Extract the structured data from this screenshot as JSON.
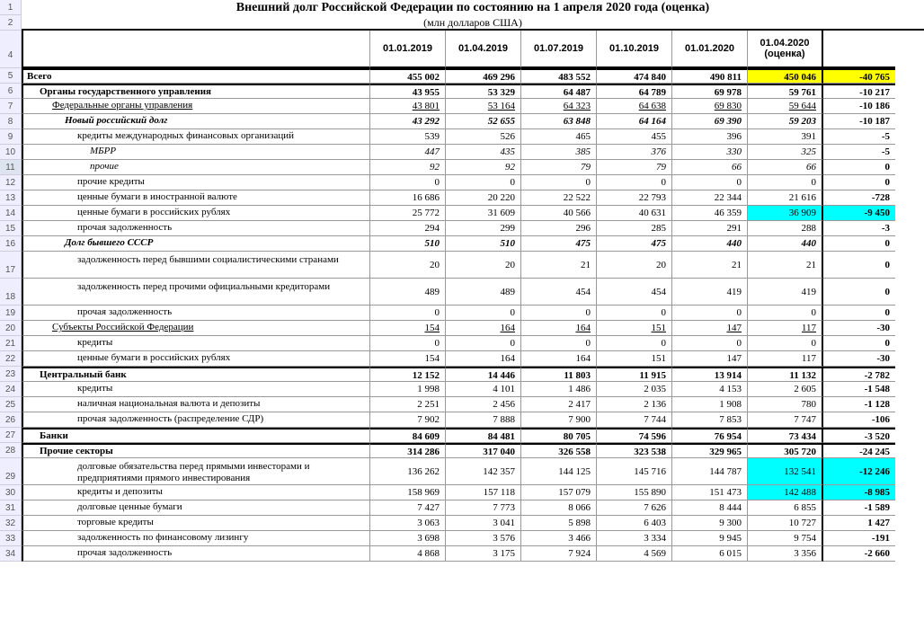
{
  "title": "Внешний долг Российской Федерации по состоянию на 1 апреля 2020 года (оценка)",
  "subtitle": "(млн долларов США)",
  "columns": [
    "01.01.2019",
    "01.04.2019",
    "01.07.2019",
    "01.10.2019",
    "01.01.2020",
    "01.04.2020 (оценка)"
  ],
  "rows": [
    {
      "n": 5,
      "lbl": "Всего",
      "ind": 0,
      "s": "bold",
      "v": [
        "455 002",
        "469 296",
        "483 552",
        "474 840",
        "490 811",
        "450 046"
      ],
      "d": "-40 765",
      "hl": [
        null,
        null,
        null,
        null,
        null,
        "y"
      ],
      "hd": "y",
      "sec": true
    },
    {
      "n": 6,
      "lbl": "Органы государственного управления",
      "ind": 1,
      "s": "bold",
      "v": [
        "43 955",
        "53 329",
        "64 487",
        "64 789",
        "69 978",
        "59 761"
      ],
      "d": "-10 217",
      "sec": true
    },
    {
      "n": 7,
      "lbl": "Федеральные органы управления",
      "ind": 2,
      "s": "und",
      "v": [
        "43 801",
        "53 164",
        "64 323",
        "64 638",
        "69 830",
        "59 644"
      ],
      "d": "-10 186"
    },
    {
      "n": 8,
      "lbl": "Новый российский долг",
      "ind": 3,
      "s": "bold ital",
      "v": [
        "43 292",
        "52 655",
        "63 848",
        "64 164",
        "69 390",
        "59 203"
      ],
      "d": "-10 187"
    },
    {
      "n": 9,
      "lbl": "кредиты международных финансовых организаций",
      "ind": 4,
      "v": [
        "539",
        "526",
        "465",
        "455",
        "396",
        "391"
      ],
      "d": "-5"
    },
    {
      "n": 10,
      "lbl": "МБРР",
      "ind": 5,
      "s": "ital",
      "v": [
        "447",
        "435",
        "385",
        "376",
        "330",
        "325"
      ],
      "d": "-5"
    },
    {
      "n": 11,
      "lbl": "прочие",
      "ind": 5,
      "s": "ital",
      "v": [
        "92",
        "92",
        "79",
        "79",
        "66",
        "66"
      ],
      "d": "0",
      "rhl": true
    },
    {
      "n": 12,
      "lbl": "прочие кредиты",
      "ind": 4,
      "v": [
        "0",
        "0",
        "0",
        "0",
        "0",
        "0"
      ],
      "d": "0"
    },
    {
      "n": 13,
      "lbl": "ценные бумаги в иностранной валюте",
      "ind": 4,
      "v": [
        "16 686",
        "20 220",
        "22 522",
        "22 793",
        "22 344",
        "21 616"
      ],
      "d": "-728"
    },
    {
      "n": 14,
      "lbl": "ценные бумаги в российских рублях",
      "ind": 4,
      "v": [
        "25 772",
        "31 609",
        "40 566",
        "40 631",
        "46 359",
        "36 909"
      ],
      "d": "-9 450",
      "hl": [
        null,
        null,
        null,
        null,
        null,
        "c"
      ],
      "hd": "c"
    },
    {
      "n": 15,
      "lbl": "прочая задолженность",
      "ind": 4,
      "v": [
        "294",
        "299",
        "296",
        "285",
        "291",
        "288"
      ],
      "d": "-3"
    },
    {
      "n": 16,
      "lbl": "Долг бывшего СССР",
      "ind": 3,
      "s": "bold ital",
      "v": [
        "510",
        "510",
        "475",
        "475",
        "440",
        "440"
      ],
      "d": "0"
    },
    {
      "n": 17,
      "lbl": "задолженность перед бывшими социалистическими странами",
      "ind": 4,
      "tall": true,
      "v": [
        "20",
        "20",
        "21",
        "20",
        "21",
        "21"
      ],
      "d": "0"
    },
    {
      "n": 18,
      "lbl": "задолженность перед прочими официальными кредиторами",
      "ind": 4,
      "tall": true,
      "v": [
        "489",
        "489",
        "454",
        "454",
        "419",
        "419"
      ],
      "d": "0"
    },
    {
      "n": 19,
      "lbl": "прочая задолженность",
      "ind": 4,
      "v": [
        "0",
        "0",
        "0",
        "0",
        "0",
        "0"
      ],
      "d": "0"
    },
    {
      "n": 20,
      "lbl": "Субъекты Российской Федерации",
      "ind": 2,
      "s": "und",
      "v": [
        "154",
        "164",
        "164",
        "151",
        "147",
        "117"
      ],
      "d": "-30"
    },
    {
      "n": 21,
      "lbl": "кредиты",
      "ind": 4,
      "v": [
        "0",
        "0",
        "0",
        "0",
        "0",
        "0"
      ],
      "d": "0"
    },
    {
      "n": 22,
      "lbl": "ценные бумаги в российских рублях",
      "ind": 4,
      "v": [
        "154",
        "164",
        "164",
        "151",
        "147",
        "117"
      ],
      "d": "-30"
    },
    {
      "n": 23,
      "lbl": "Центральный банк",
      "ind": 1,
      "s": "bold",
      "v": [
        "12 152",
        "14 446",
        "11 803",
        "11 915",
        "13 914",
        "11 132"
      ],
      "d": "-2 782",
      "sec": true
    },
    {
      "n": 24,
      "lbl": "кредиты",
      "ind": 4,
      "v": [
        "1 998",
        "4 101",
        "1 486",
        "2 035",
        "4 153",
        "2 605"
      ],
      "d": "-1 548"
    },
    {
      "n": 25,
      "lbl": "наличная национальная валюта и депозиты",
      "ind": 4,
      "v": [
        "2 251",
        "2 456",
        "2 417",
        "2 136",
        "1 908",
        "780"
      ],
      "d": "-1 128"
    },
    {
      "n": 26,
      "lbl": "прочая задолженность (распределение СДР)",
      "ind": 4,
      "v": [
        "7 902",
        "7 888",
        "7 900",
        "7 744",
        "7 853",
        "7 747"
      ],
      "d": "-106"
    },
    {
      "n": 27,
      "lbl": "Банки",
      "ind": 1,
      "s": "bold",
      "v": [
        "84 609",
        "84 481",
        "80 705",
        "74 596",
        "76 954",
        "73 434"
      ],
      "d": "-3 520",
      "sec": true
    },
    {
      "n": 28,
      "lbl": "Прочие секторы",
      "ind": 1,
      "s": "bold",
      "v": [
        "314 286",
        "317 040",
        "326 558",
        "323 538",
        "329 965",
        "305 720"
      ],
      "d": "-24 245",
      "sec": true
    },
    {
      "n": 29,
      "lbl": "долговые обязательства перед прямыми инвесторами и предприятиями прямого инвестирования",
      "ind": 4,
      "tall": true,
      "v": [
        "136 262",
        "142 357",
        "144 125",
        "145 716",
        "144 787",
        "132 541"
      ],
      "d": "-12 246",
      "hl": [
        null,
        null,
        null,
        null,
        null,
        "c"
      ],
      "hd": "c"
    },
    {
      "n": 30,
      "lbl": "кредиты и депозиты",
      "ind": 4,
      "v": [
        "158 969",
        "157 118",
        "157 079",
        "155 890",
        "151 473",
        "142 488"
      ],
      "d": "-8 985",
      "hl": [
        null,
        null,
        null,
        null,
        null,
        "c"
      ],
      "hd": "c"
    },
    {
      "n": 31,
      "lbl": "долговые ценные бумаги",
      "ind": 4,
      "v": [
        "7 427",
        "7 773",
        "8 066",
        "7 626",
        "8 444",
        "6 855"
      ],
      "d": "-1 589"
    },
    {
      "n": 32,
      "lbl": "торговые кредиты",
      "ind": 4,
      "v": [
        "3 063",
        "3 041",
        "5 898",
        "6 403",
        "9 300",
        "10 727"
      ],
      "d": "1 427"
    },
    {
      "n": 33,
      "lbl": "задолженность по финансовому лизингу",
      "ind": 4,
      "v": [
        "3 698",
        "3 576",
        "3 466",
        "3 334",
        "9 945",
        "9 754"
      ],
      "d": "-191"
    },
    {
      "n": 34,
      "lbl": "прочая задолженность",
      "ind": 4,
      "v": [
        "4 868",
        "3 175",
        "7 924",
        "4 569",
        "6 015",
        "3 356"
      ],
      "d": "-2 660",
      "last": true
    }
  ],
  "colors": {
    "yellow": "#ffff00",
    "cyan": "#00ffff"
  }
}
